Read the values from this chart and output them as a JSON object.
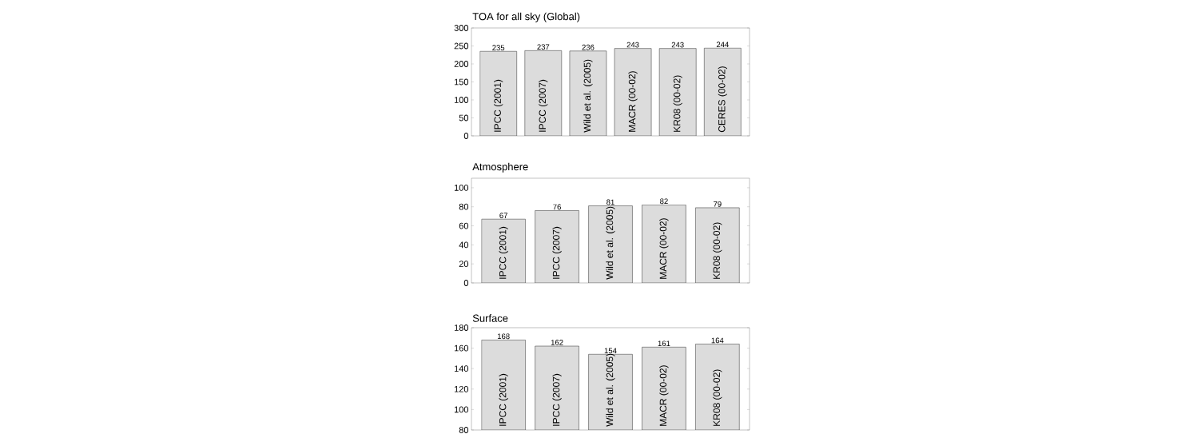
{
  "chart_data": [
    {
      "type": "bar",
      "title": "TOA for all sky (Global)",
      "categories": [
        "IPCC (2001)",
        "IPCC (2007)",
        "Wild et al. (2005)",
        "MACR (00-02)",
        "KR08 (00-02)",
        "CERES (00-02)"
      ],
      "values": [
        235,
        237,
        236,
        243,
        243,
        244
      ],
      "color": "#dcdcdc",
      "data_labels": true,
      "ylim": [
        0,
        300
      ],
      "yticks": [
        0,
        50,
        100,
        150,
        200,
        250,
        300
      ]
    },
    {
      "type": "bar",
      "title": "Atmosphere",
      "categories": [
        "IPCC (2001)",
        "IPCC (2007)",
        "Wild et al. (2005)",
        "MACR (00-02)",
        "KR08 (00-02)"
      ],
      "values": [
        67,
        76,
        81,
        82,
        79
      ],
      "color": "#dcdcdc",
      "data_labels": true,
      "ylim": [
        0,
        110
      ],
      "yticks": [
        0,
        20,
        40,
        60,
        80,
        100
      ]
    },
    {
      "type": "bar",
      "title": "Surface",
      "categories": [
        "IPCC (2001)",
        "IPCC (2007)",
        "Wild et al. (2005)",
        "MACR (00-02)",
        "KR08 (00-02)"
      ],
      "values": [
        168,
        162,
        154,
        161,
        164
      ],
      "color": "#dcdcdc",
      "data_labels": true,
      "ylim": [
        80,
        180
      ],
      "yticks": [
        80,
        100,
        120,
        140,
        160,
        180
      ]
    }
  ]
}
